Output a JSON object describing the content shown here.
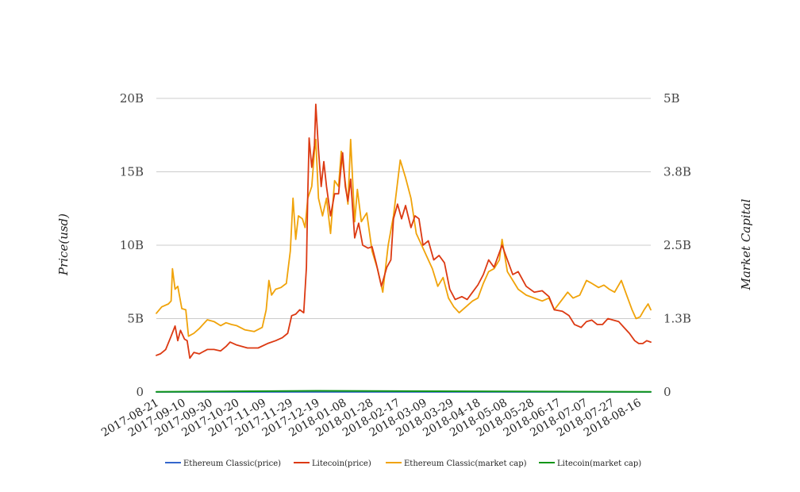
{
  "chart_data": {
    "type": "line",
    "title": "",
    "ylabel": "Price(usd)",
    "y2label": "Market Capital",
    "ylim": [
      0,
      20000000000
    ],
    "y2lim": [
      0,
      5000000000
    ],
    "yticks": [
      "0",
      "5B",
      "10B",
      "15B",
      "20B"
    ],
    "y2ticks": [
      "0",
      "1.3B",
      "2.5B",
      "3.8B",
      "5B"
    ],
    "xlim": [
      "2017-08-21",
      "2018-08-25"
    ],
    "xticks": [
      "2017-08-21",
      "2017-09-10",
      "2017-09-30",
      "2017-10-20",
      "2017-11-09",
      "2017-11-29",
      "2017-12-19",
      "2018-01-08",
      "2018-01-28",
      "2018-02-17",
      "2018-03-09",
      "2018-03-29",
      "2018-04-18",
      "2018-05-08",
      "2018-05-28",
      "2018-06-17",
      "2018-07-07",
      "2018-07-27",
      "2018-08-16"
    ],
    "grid": true,
    "legend_position": "bottom",
    "series": [
      {
        "name": "Ethereum Classic(price)",
        "axis": "left",
        "color": "#3366cc",
        "points": [
          [
            "2017-08-21",
            13
          ],
          [
            "2017-10-01",
            11
          ],
          [
            "2017-12-01",
            25
          ],
          [
            "2018-01-13",
            38
          ],
          [
            "2018-03-01",
            25
          ],
          [
            "2018-05-05",
            19
          ],
          [
            "2018-07-01",
            16
          ],
          [
            "2018-08-25",
            12
          ]
        ]
      },
      {
        "name": "Litecoin(price)",
        "axis": "left",
        "color": "#dc3912",
        "points": [
          [
            "2017-08-21",
            2500000000
          ],
          [
            "2017-08-24",
            2600000000
          ],
          [
            "2017-08-28",
            2900000000
          ],
          [
            "2017-09-01",
            3800000000
          ],
          [
            "2017-09-04",
            4500000000
          ],
          [
            "2017-09-06",
            3500000000
          ],
          [
            "2017-09-08",
            4200000000
          ],
          [
            "2017-09-11",
            3600000000
          ],
          [
            "2017-09-13",
            3500000000
          ],
          [
            "2017-09-15",
            2300000000
          ],
          [
            "2017-09-18",
            2700000000
          ],
          [
            "2017-09-22",
            2600000000
          ],
          [
            "2017-09-28",
            2900000000
          ],
          [
            "2017-10-03",
            2900000000
          ],
          [
            "2017-10-08",
            2800000000
          ],
          [
            "2017-10-12",
            3100000000
          ],
          [
            "2017-10-15",
            3400000000
          ],
          [
            "2017-10-20",
            3200000000
          ],
          [
            "2017-10-28",
            3000000000
          ],
          [
            "2017-11-05",
            3000000000
          ],
          [
            "2017-11-12",
            3300000000
          ],
          [
            "2017-11-18",
            3500000000
          ],
          [
            "2017-11-23",
            3700000000
          ],
          [
            "2017-11-27",
            4000000000
          ],
          [
            "2017-11-30",
            5200000000
          ],
          [
            "2017-12-03",
            5300000000
          ],
          [
            "2017-12-06",
            5600000000
          ],
          [
            "2017-12-09",
            5400000000
          ],
          [
            "2017-12-11",
            8500000000
          ],
          [
            "2017-12-12",
            13500000000
          ],
          [
            "2017-12-13",
            17300000000
          ],
          [
            "2017-12-15",
            15300000000
          ],
          [
            "2017-12-17",
            16800000000
          ],
          [
            "2017-12-18",
            19600000000
          ],
          [
            "2017-12-20",
            16500000000
          ],
          [
            "2017-12-22",
            14000000000
          ],
          [
            "2017-12-24",
            15700000000
          ],
          [
            "2017-12-26",
            14000000000
          ],
          [
            "2017-12-29",
            12000000000
          ],
          [
            "2018-01-01",
            13500000000
          ],
          [
            "2018-01-04",
            13500000000
          ],
          [
            "2018-01-06",
            15500000000
          ],
          [
            "2018-01-07",
            16300000000
          ],
          [
            "2018-01-09",
            14000000000
          ],
          [
            "2018-01-11",
            13000000000
          ],
          [
            "2018-01-13",
            14500000000
          ],
          [
            "2018-01-16",
            10500000000
          ],
          [
            "2018-01-19",
            11500000000
          ],
          [
            "2018-01-22",
            10000000000
          ],
          [
            "2018-01-26",
            9800000000
          ],
          [
            "2018-01-29",
            9900000000
          ],
          [
            "2018-02-01",
            8800000000
          ],
          [
            "2018-02-05",
            7200000000
          ],
          [
            "2018-02-09",
            8500000000
          ],
          [
            "2018-02-12",
            9000000000
          ],
          [
            "2018-02-14",
            11800000000
          ],
          [
            "2018-02-17",
            12800000000
          ],
          [
            "2018-02-20",
            11800000000
          ],
          [
            "2018-02-23",
            12700000000
          ],
          [
            "2018-02-27",
            11200000000
          ],
          [
            "2018-03-02",
            12000000000
          ],
          [
            "2018-03-05",
            11800000000
          ],
          [
            "2018-03-08",
            10000000000
          ],
          [
            "2018-03-12",
            10300000000
          ],
          [
            "2018-03-16",
            9000000000
          ],
          [
            "2018-03-20",
            9300000000
          ],
          [
            "2018-03-24",
            8800000000
          ],
          [
            "2018-03-28",
            7000000000
          ],
          [
            "2018-04-01",
            6300000000
          ],
          [
            "2018-04-06",
            6500000000
          ],
          [
            "2018-04-10",
            6300000000
          ],
          [
            "2018-04-14",
            6800000000
          ],
          [
            "2018-04-18",
            7300000000
          ],
          [
            "2018-04-22",
            8000000000
          ],
          [
            "2018-04-26",
            9000000000
          ],
          [
            "2018-04-30",
            8500000000
          ],
          [
            "2018-05-04",
            9500000000
          ],
          [
            "2018-05-06",
            10000000000
          ],
          [
            "2018-05-10",
            9000000000
          ],
          [
            "2018-05-14",
            8000000000
          ],
          [
            "2018-05-18",
            8200000000
          ],
          [
            "2018-05-24",
            7200000000
          ],
          [
            "2018-05-30",
            6800000000
          ],
          [
            "2018-06-05",
            6900000000
          ],
          [
            "2018-06-10",
            6500000000
          ],
          [
            "2018-06-14",
            5600000000
          ],
          [
            "2018-06-20",
            5500000000
          ],
          [
            "2018-06-25",
            5200000000
          ],
          [
            "2018-06-29",
            4600000000
          ],
          [
            "2018-07-04",
            4400000000
          ],
          [
            "2018-07-08",
            4800000000
          ],
          [
            "2018-07-12",
            4900000000
          ],
          [
            "2018-07-16",
            4600000000
          ],
          [
            "2018-07-20",
            4600000000
          ],
          [
            "2018-07-24",
            5000000000
          ],
          [
            "2018-07-28",
            4900000000
          ],
          [
            "2018-08-01",
            4800000000
          ],
          [
            "2018-08-05",
            4400000000
          ],
          [
            "2018-08-09",
            4000000000
          ],
          [
            "2018-08-13",
            3500000000
          ],
          [
            "2018-08-16",
            3300000000
          ],
          [
            "2018-08-19",
            3300000000
          ],
          [
            "2018-08-22",
            3500000000
          ],
          [
            "2018-08-25",
            3400000000
          ]
        ]
      },
      {
        "name": "Ethereum Classic(market cap)",
        "axis": "right",
        "color": "#f0a30a",
        "points": [
          [
            "2017-08-21",
            1340000000
          ],
          [
            "2017-08-25",
            1450000000
          ],
          [
            "2017-08-30",
            1500000000
          ],
          [
            "2017-09-01",
            1550000000
          ],
          [
            "2017-09-02",
            2100000000
          ],
          [
            "2017-09-04",
            1750000000
          ],
          [
            "2017-09-06",
            1800000000
          ],
          [
            "2017-09-09",
            1420000000
          ],
          [
            "2017-09-12",
            1400000000
          ],
          [
            "2017-09-14",
            950000000
          ],
          [
            "2017-09-18",
            1000000000
          ],
          [
            "2017-09-22",
            1080000000
          ],
          [
            "2017-09-28",
            1230000000
          ],
          [
            "2017-10-03",
            1200000000
          ],
          [
            "2017-10-08",
            1130000000
          ],
          [
            "2017-10-12",
            1180000000
          ],
          [
            "2017-10-16",
            1150000000
          ],
          [
            "2017-10-20",
            1130000000
          ],
          [
            "2017-10-26",
            1060000000
          ],
          [
            "2017-11-02",
            1030000000
          ],
          [
            "2017-11-08",
            1100000000
          ],
          [
            "2017-11-11",
            1400000000
          ],
          [
            "2017-11-13",
            1900000000
          ],
          [
            "2017-11-15",
            1650000000
          ],
          [
            "2017-11-18",
            1750000000
          ],
          [
            "2017-11-22",
            1780000000
          ],
          [
            "2017-11-26",
            1850000000
          ],
          [
            "2017-11-29",
            2400000000
          ],
          [
            "2017-12-01",
            3300000000
          ],
          [
            "2017-12-03",
            2600000000
          ],
          [
            "2017-12-05",
            3000000000
          ],
          [
            "2017-12-08",
            2950000000
          ],
          [
            "2017-12-10",
            2800000000
          ],
          [
            "2017-12-12",
            3300000000
          ],
          [
            "2017-12-15",
            3500000000
          ],
          [
            "2017-12-17",
            4100000000
          ],
          [
            "2017-12-18",
            4300000000
          ],
          [
            "2017-12-20",
            3300000000
          ],
          [
            "2017-12-23",
            3000000000
          ],
          [
            "2017-12-26",
            3300000000
          ],
          [
            "2017-12-29",
            2700000000
          ],
          [
            "2018-01-01",
            3600000000
          ],
          [
            "2018-01-04",
            3500000000
          ],
          [
            "2018-01-06",
            4100000000
          ],
          [
            "2018-01-08",
            3750000000
          ],
          [
            "2018-01-11",
            3200000000
          ],
          [
            "2018-01-13",
            4300000000
          ],
          [
            "2018-01-16",
            2900000000
          ],
          [
            "2018-01-18",
            3450000000
          ],
          [
            "2018-01-21",
            2900000000
          ],
          [
            "2018-01-25",
            3050000000
          ],
          [
            "2018-01-29",
            2400000000
          ],
          [
            "2018-02-02",
            2100000000
          ],
          [
            "2018-02-06",
            1700000000
          ],
          [
            "2018-02-10",
            2500000000
          ],
          [
            "2018-02-14",
            3000000000
          ],
          [
            "2018-02-19",
            3950000000
          ],
          [
            "2018-02-23",
            3650000000
          ],
          [
            "2018-02-27",
            3300000000
          ],
          [
            "2018-03-03",
            2700000000
          ],
          [
            "2018-03-07",
            2500000000
          ],
          [
            "2018-03-11",
            2300000000
          ],
          [
            "2018-03-15",
            2100000000
          ],
          [
            "2018-03-19",
            1800000000
          ],
          [
            "2018-03-23",
            1950000000
          ],
          [
            "2018-03-27",
            1600000000
          ],
          [
            "2018-03-31",
            1450000000
          ],
          [
            "2018-04-04",
            1350000000
          ],
          [
            "2018-04-09",
            1450000000
          ],
          [
            "2018-04-14",
            1550000000
          ],
          [
            "2018-04-18",
            1600000000
          ],
          [
            "2018-04-22",
            1850000000
          ],
          [
            "2018-04-26",
            2050000000
          ],
          [
            "2018-04-30",
            2100000000
          ],
          [
            "2018-05-04",
            2250000000
          ],
          [
            "2018-05-06",
            2600000000
          ],
          [
            "2018-05-10",
            2050000000
          ],
          [
            "2018-05-14",
            1900000000
          ],
          [
            "2018-05-18",
            1750000000
          ],
          [
            "2018-05-24",
            1650000000
          ],
          [
            "2018-05-30",
            1600000000
          ],
          [
            "2018-06-05",
            1550000000
          ],
          [
            "2018-06-10",
            1600000000
          ],
          [
            "2018-06-14",
            1400000000
          ],
          [
            "2018-06-19",
            1550000000
          ],
          [
            "2018-06-24",
            1700000000
          ],
          [
            "2018-06-28",
            1600000000
          ],
          [
            "2018-07-03",
            1650000000
          ],
          [
            "2018-07-08",
            1900000000
          ],
          [
            "2018-07-12",
            1850000000
          ],
          [
            "2018-07-17",
            1780000000
          ],
          [
            "2018-07-21",
            1820000000
          ],
          [
            "2018-07-25",
            1750000000
          ],
          [
            "2018-07-29",
            1700000000
          ],
          [
            "2018-08-03",
            1900000000
          ],
          [
            "2018-08-07",
            1650000000
          ],
          [
            "2018-08-11",
            1400000000
          ],
          [
            "2018-08-14",
            1250000000
          ],
          [
            "2018-08-17",
            1280000000
          ],
          [
            "2018-08-20",
            1400000000
          ],
          [
            "2018-08-23",
            1500000000
          ],
          [
            "2018-08-25",
            1400000000
          ]
        ]
      },
      {
        "name": "Litecoin(market cap)",
        "axis": "right",
        "color": "#109618",
        "points": [
          [
            "2017-08-21",
            2500000
          ],
          [
            "2017-12-19",
            20000000
          ],
          [
            "2018-08-25",
            3000000
          ]
        ]
      }
    ]
  }
}
